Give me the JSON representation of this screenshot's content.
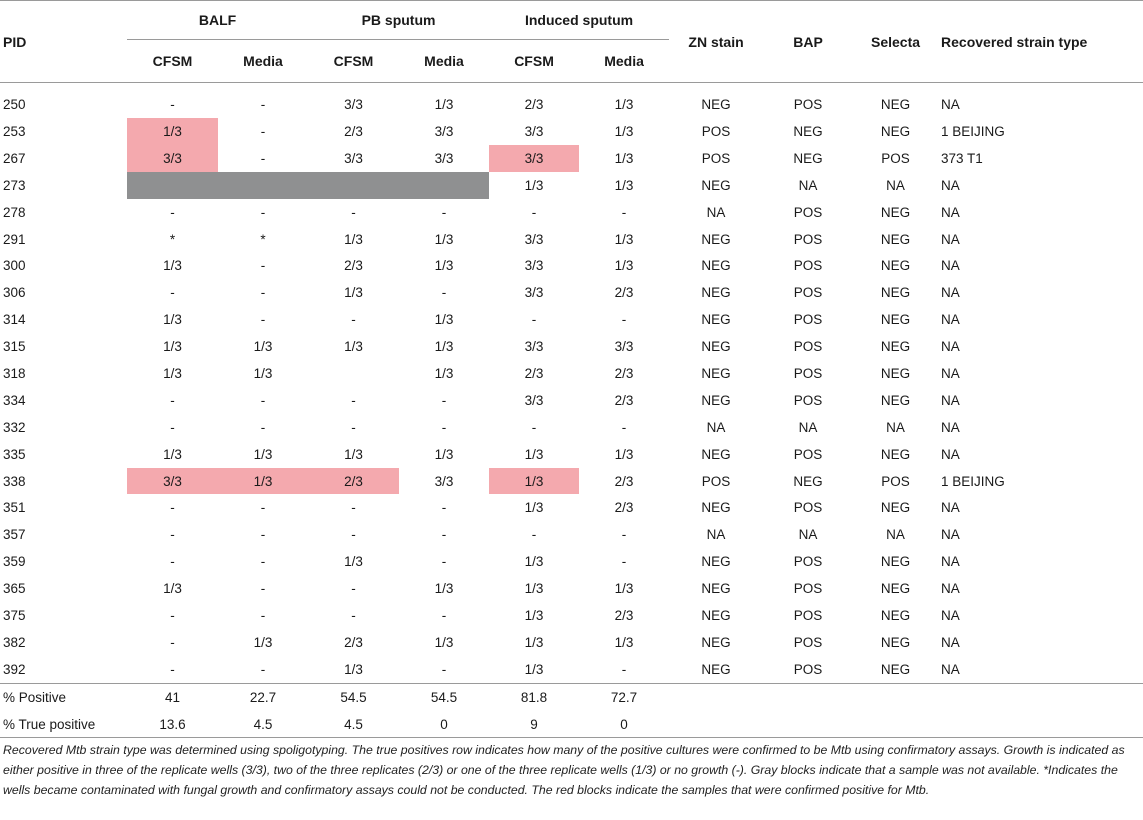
{
  "headers": {
    "pid": "PID",
    "groups": [
      "BALF",
      "PB sputum",
      "Induced sputum"
    ],
    "sub": [
      "CFSM",
      "Media",
      "CFSM",
      "Media",
      "CFSM",
      "Media"
    ],
    "zn": "ZN stain",
    "bap": "BAP",
    "selecta": "Selecta",
    "strain": "Recovered strain type"
  },
  "rows": [
    {
      "pid": "250",
      "vals": [
        "-",
        "-",
        "3/3",
        "1/3",
        "2/3",
        "1/3"
      ],
      "zn": "NEG",
      "bap": "POS",
      "selecta": "NEG",
      "strain": "NA"
    },
    {
      "pid": "253",
      "vals": [
        "1/3",
        "-",
        "2/3",
        "3/3",
        "3/3",
        "1/3"
      ],
      "zn": "POS",
      "bap": "NEG",
      "selecta": "NEG",
      "strain": "1 BEIJING"
    },
    {
      "pid": "267",
      "vals": [
        "3/3",
        "-",
        "3/3",
        "3/3",
        "3/3",
        "1/3"
      ],
      "zn": "POS",
      "bap": "NEG",
      "selecta": "POS",
      "strain": "373 T1"
    },
    {
      "pid": "273",
      "vals": [
        "",
        "",
        "",
        "",
        "1/3",
        "1/3"
      ],
      "zn": "NEG",
      "bap": "NA",
      "selecta": "NA",
      "strain": "NA"
    },
    {
      "pid": "278",
      "vals": [
        "-",
        "-",
        "-",
        "-",
        "-",
        "-"
      ],
      "zn": "NA",
      "bap": "POS",
      "selecta": "NEG",
      "strain": "NA"
    },
    {
      "pid": "291",
      "vals": [
        "*",
        "*",
        "1/3",
        "1/3",
        "3/3",
        "1/3"
      ],
      "zn": "NEG",
      "bap": "POS",
      "selecta": "NEG",
      "strain": "NA"
    },
    {
      "pid": "300",
      "vals": [
        "1/3",
        "-",
        "2/3",
        "1/3",
        "3/3",
        "1/3"
      ],
      "zn": "NEG",
      "bap": "POS",
      "selecta": "NEG",
      "strain": "NA"
    },
    {
      "pid": "306",
      "vals": [
        "-",
        "-",
        "1/3",
        "-",
        "3/3",
        "2/3"
      ],
      "zn": "NEG",
      "bap": "POS",
      "selecta": "NEG",
      "strain": "NA"
    },
    {
      "pid": "314",
      "vals": [
        "1/3",
        "-",
        "-",
        "1/3",
        "-",
        "-"
      ],
      "zn": "NEG",
      "bap": "POS",
      "selecta": "NEG",
      "strain": "NA"
    },
    {
      "pid": "315",
      "vals": [
        "1/3",
        "1/3",
        "1/3",
        "1/3",
        "3/3",
        "3/3"
      ],
      "zn": "NEG",
      "bap": "POS",
      "selecta": "NEG",
      "strain": "NA"
    },
    {
      "pid": "318",
      "vals": [
        "1/3",
        "1/3",
        "",
        "1/3",
        "2/3",
        "2/3"
      ],
      "zn": "NEG",
      "bap": "POS",
      "selecta": "NEG",
      "strain": "NA"
    },
    {
      "pid": "334",
      "vals": [
        "-",
        "-",
        "-",
        "-",
        "3/3",
        "2/3"
      ],
      "zn": "NEG",
      "bap": "POS",
      "selecta": "NEG",
      "strain": "NA"
    },
    {
      "pid": "332",
      "vals": [
        "-",
        "-",
        "-",
        "-",
        "-",
        "-"
      ],
      "zn": "NA",
      "bap": "NA",
      "selecta": "NA",
      "strain": "NA"
    },
    {
      "pid": "335",
      "vals": [
        "1/3",
        "1/3",
        "1/3",
        "1/3",
        "1/3",
        "1/3"
      ],
      "zn": "NEG",
      "bap": "POS",
      "selecta": "NEG",
      "strain": "NA"
    },
    {
      "pid": "338",
      "vals": [
        "3/3",
        "1/3",
        "2/3",
        "3/3",
        "1/3",
        "2/3"
      ],
      "zn": "POS",
      "bap": "NEG",
      "selecta": "POS",
      "strain": "1 BEIJING"
    },
    {
      "pid": "351",
      "vals": [
        "-",
        "-",
        "-",
        "-",
        "1/3",
        "2/3"
      ],
      "zn": "NEG",
      "bap": "POS",
      "selecta": "NEG",
      "strain": "NA"
    },
    {
      "pid": "357",
      "vals": [
        "-",
        "-",
        "-",
        "-",
        "-",
        "-"
      ],
      "zn": "NA",
      "bap": "NA",
      "selecta": "NA",
      "strain": "NA"
    },
    {
      "pid": "359",
      "vals": [
        "-",
        "-",
        "1/3",
        "-",
        "1/3",
        "-"
      ],
      "zn": "NEG",
      "bap": "POS",
      "selecta": "NEG",
      "strain": "NA"
    },
    {
      "pid": "365",
      "vals": [
        "1/3",
        "-",
        "-",
        "1/3",
        "1/3",
        "1/3"
      ],
      "zn": "NEG",
      "bap": "POS",
      "selecta": "NEG",
      "strain": "NA"
    },
    {
      "pid": "375",
      "vals": [
        "-",
        "-",
        "-",
        "-",
        "1/3",
        "2/3"
      ],
      "zn": "NEG",
      "bap": "POS",
      "selecta": "NEG",
      "strain": "NA"
    },
    {
      "pid": "382",
      "vals": [
        "-",
        "1/3",
        "2/3",
        "1/3",
        "1/3",
        "1/3"
      ],
      "zn": "NEG",
      "bap": "POS",
      "selecta": "NEG",
      "strain": "NA"
    },
    {
      "pid": "392",
      "vals": [
        "-",
        "-",
        "1/3",
        "-",
        "1/3",
        "-"
      ],
      "zn": "NEG",
      "bap": "POS",
      "selecta": "NEG",
      "strain": "NA"
    }
  ],
  "summary": [
    {
      "label": "% Positive",
      "vals": [
        "41",
        "22.7",
        "54.5",
        "54.5",
        "81.8",
        "72.7"
      ]
    },
    {
      "label": "% True positive",
      "vals": [
        "13.6",
        "4.5",
        "4.5",
        "0",
        "9",
        "0"
      ]
    }
  ],
  "footnote": "Recovered Mtb strain type was determined using spoligotyping. The true positives row indicates how many of the positive cultures were confirmed to be Mtb using confirmatory assays. Growth is indicated as either positive in three of the replicate wells (3/3), two of the three replicates (2/3) or one of the three replicate wells (1/3) or no growth (-). Gray blocks indicate that a sample was not available. *Indicates the wells became contaminated with fungal growth and confirmatory assays could not be conducted. The red blocks indicate the samples that were confirmed positive for Mtb."
}
